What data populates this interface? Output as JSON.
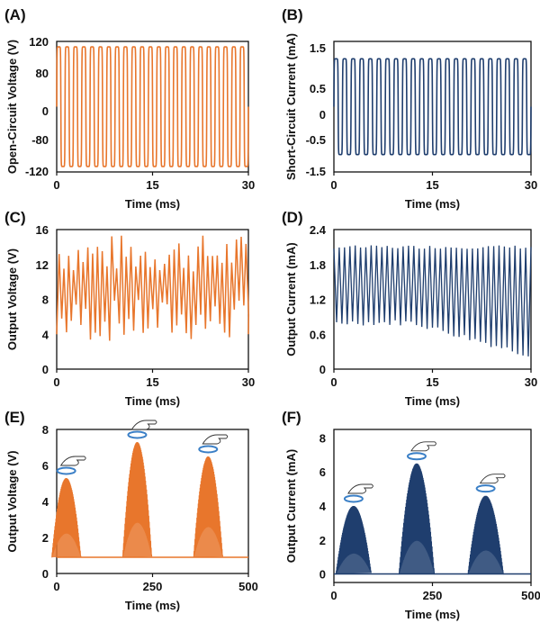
{
  "colors": {
    "orange": "#E8762C",
    "navy": "#1F3E6E",
    "ring": "#3A7FC6",
    "axis": "#111111"
  },
  "chart_data": [
    {
      "id": "A",
      "panel_label": "(A)",
      "type": "line",
      "waveform": "square-ish",
      "xlabel": "Time (ms)",
      "ylabel": "Open-Circuit Voltage (V)",
      "xticks": [
        0,
        15,
        30
      ],
      "yticks_labels": [
        "-120",
        "-80",
        "0",
        "80",
        "120"
      ],
      "xlim": [
        0,
        30
      ],
      "ylim": [
        -120,
        120
      ],
      "series": [
        {
          "color": "#E8762C",
          "cycles": 23,
          "amplitude": 110
        }
      ]
    },
    {
      "id": "B",
      "panel_label": "(B)",
      "type": "line",
      "xlabel": "Time (ms)",
      "ylabel": "Short-Circuit Current (mA)",
      "xticks": [
        0,
        15,
        30
      ],
      "yticks_labels": [
        "-1.5",
        "-0.5",
        "0",
        "0.5",
        "1.5"
      ],
      "xlim": [
        0,
        30
      ],
      "ylim": [
        -1.5,
        1.5
      ],
      "series": [
        {
          "color": "#1F3E6E",
          "cycles": 23,
          "amplitude": 1.1
        }
      ]
    },
    {
      "id": "C",
      "panel_label": "(C)",
      "type": "line",
      "xlabel": "Time (ms)",
      "ylabel": "Output Voltage (V)",
      "xticks": [
        0,
        15,
        30
      ],
      "yticks": [
        0,
        4,
        8,
        12,
        16
      ],
      "xlim": [
        0,
        30
      ],
      "ylim": [
        0,
        16
      ],
      "series": [
        {
          "color": "#E8762C",
          "peaks": 40,
          "peak_range": [
            11,
            15.5
          ],
          "trough_range": [
            3,
            8
          ]
        }
      ]
    },
    {
      "id": "D",
      "panel_label": "(D)",
      "type": "line",
      "xlabel": "Time (ms)",
      "ylabel": "Output Current (mA)",
      "xticks": [
        0,
        15,
        30
      ],
      "yticks": [
        0,
        0.6,
        1.2,
        1.8,
        2.4
      ],
      "xlim": [
        0,
        30
      ],
      "ylim": [
        0,
        2.4
      ],
      "series": [
        {
          "color": "#1F3E6E",
          "cycles": 37,
          "peak": 2.1,
          "trough_start": 0.8,
          "trough_end": 0.25
        }
      ]
    },
    {
      "id": "E",
      "panel_label": "(E)",
      "type": "area",
      "xlabel": "Time (ms)",
      "ylabel": "Output Voltage (V)",
      "xticks": [
        0,
        250,
        500
      ],
      "yticks": [
        0,
        2,
        4,
        6,
        8
      ],
      "xlim": [
        0,
        500
      ],
      "ylim": [
        0,
        8
      ],
      "series": [
        {
          "color": "#E8762C",
          "baseline": 0.9,
          "bursts": [
            {
              "center": 25,
              "peak": 5.3
            },
            {
              "center": 210,
              "peak": 7.3
            },
            {
              "center": 395,
              "peak": 6.5
            }
          ]
        }
      ],
      "annotations": [
        "finger-ring-icon",
        "finger-ring-icon",
        "finger-ring-icon"
      ]
    },
    {
      "id": "F",
      "panel_label": "(F)",
      "type": "area",
      "xlabel": "Time (ms)",
      "ylabel": "Output Current (mA)",
      "xticks": [
        0,
        250,
        500
      ],
      "yticks": [
        0,
        2,
        4,
        6,
        8
      ],
      "xlim": [
        0,
        500
      ],
      "ylim": [
        -0.5,
        8.5
      ],
      "series": [
        {
          "color": "#1F3E6E",
          "baseline": 0,
          "bursts": [
            {
              "center": 50,
              "peak": 4.0
            },
            {
              "center": 210,
              "peak": 6.5
            },
            {
              "center": 385,
              "peak": 4.6
            }
          ]
        }
      ],
      "annotations": [
        "finger-ring-icon",
        "finger-ring-icon",
        "finger-ring-icon"
      ]
    }
  ]
}
